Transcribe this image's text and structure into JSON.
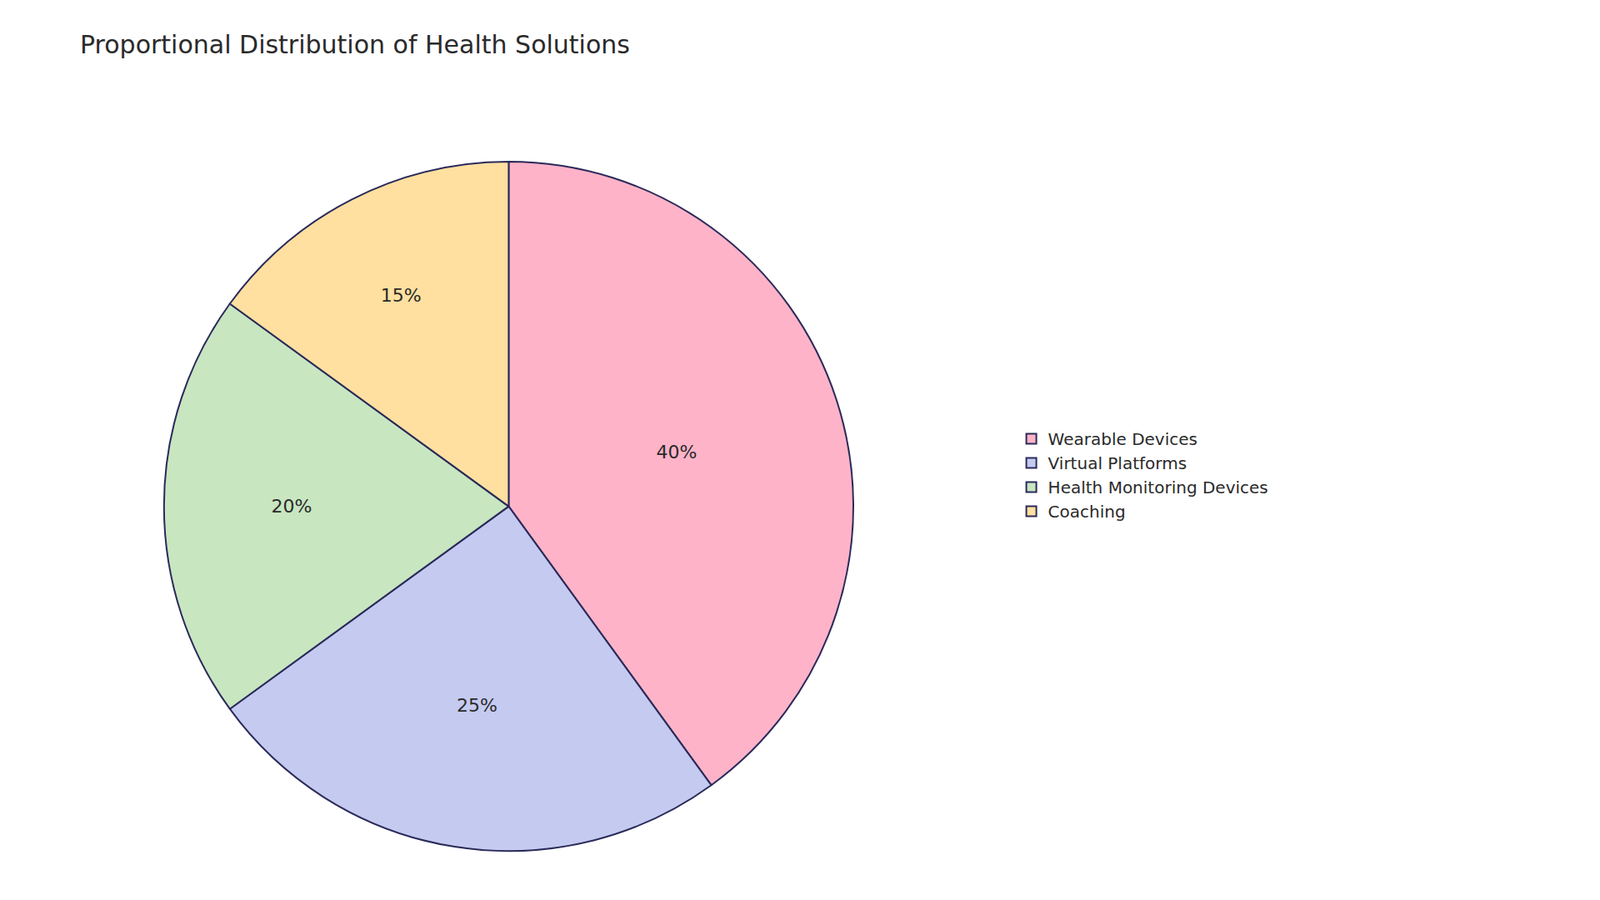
{
  "chart_data": {
    "type": "pie",
    "title": "Proportional Distribution of Health Solutions",
    "categories": [
      "Wearable Devices",
      "Virtual Platforms",
      "Health Monitoring Devices",
      "Coaching"
    ],
    "values": [
      40,
      25,
      20,
      15
    ],
    "value_labels": [
      "40%",
      "25%",
      "20%",
      "15%"
    ],
    "colors": [
      "#FFB3C8",
      "#C5CAF0",
      "#C8E6C0",
      "#FFE0A0"
    ],
    "data_labels": true,
    "legend": "right"
  }
}
